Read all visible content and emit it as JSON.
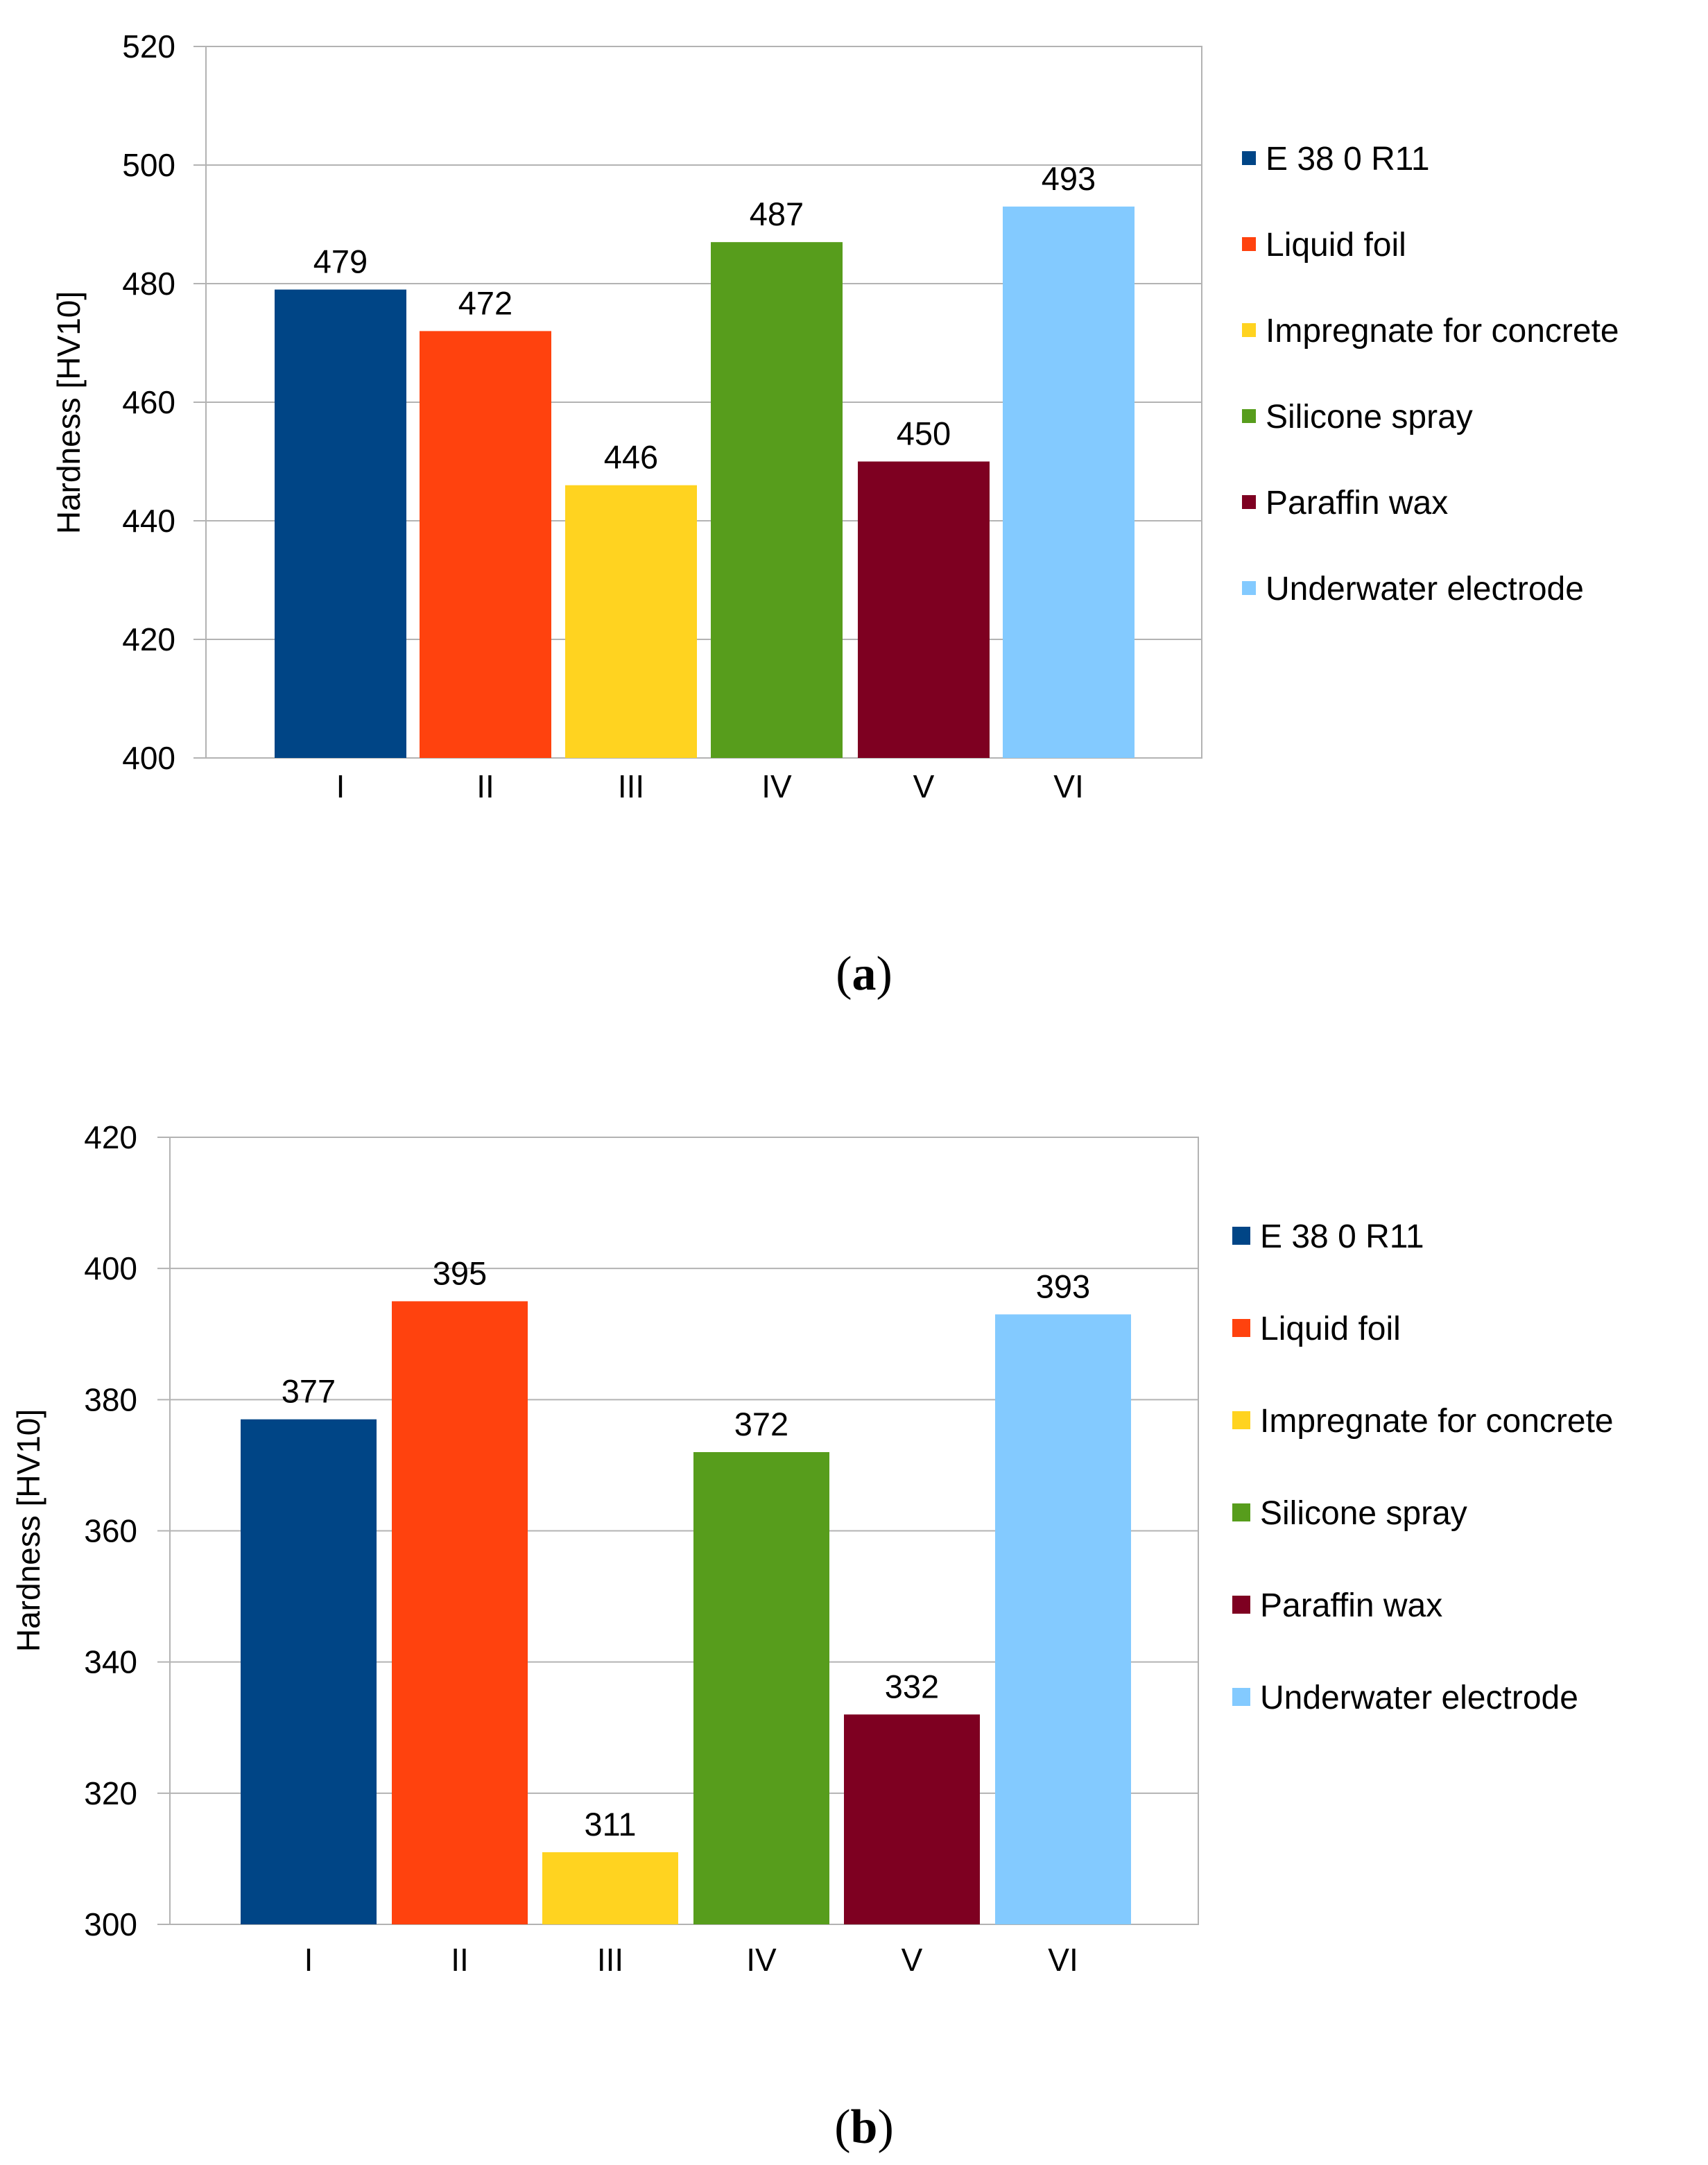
{
  "chart_data": [
    {
      "type": "bar",
      "panel_label": "a",
      "ylabel": "Hardness [HV10]",
      "xlabel": "",
      "ylim": [
        400,
        520
      ],
      "y_ticks": [
        400,
        420,
        440,
        460,
        480,
        500,
        520
      ],
      "grid": true,
      "legend_position": "right",
      "categories": [
        "I",
        "II",
        "III",
        "IV",
        "V",
        "VI"
      ],
      "values": [
        479,
        472,
        446,
        487,
        450,
        493
      ],
      "series": [
        {
          "name": "E 38 0 R11",
          "color": "#004586"
        },
        {
          "name": "Liquid foil",
          "color": "#ff420e"
        },
        {
          "name": "Impregnate for concrete",
          "color": "#ffd320"
        },
        {
          "name": "Silicone spray",
          "color": "#579d1c"
        },
        {
          "name": "Paraffin wax",
          "color": "#7e0021"
        },
        {
          "name": "Underwater electrode",
          "color": "#83caff"
        }
      ]
    },
    {
      "type": "bar",
      "panel_label": "b",
      "ylabel": "Hardness [HV10]",
      "xlabel": "",
      "ylim": [
        300,
        420
      ],
      "y_ticks": [
        300,
        320,
        340,
        360,
        380,
        400,
        420
      ],
      "grid": true,
      "legend_position": "right",
      "categories": [
        "I",
        "II",
        "III",
        "IV",
        "V",
        "VI"
      ],
      "values": [
        377,
        395,
        311,
        372,
        332,
        393
      ],
      "series": [
        {
          "name": "E 38 0 R11",
          "color": "#004586"
        },
        {
          "name": "Liquid foil",
          "color": "#ff420e"
        },
        {
          "name": "Impregnate for concrete",
          "color": "#ffd320"
        },
        {
          "name": "Silicone spray",
          "color": "#579d1c"
        },
        {
          "name": "Paraffin wax",
          "color": "#7e0021"
        },
        {
          "name": "Underwater electrode",
          "color": "#83caff"
        }
      ]
    }
  ],
  "style": {
    "grid_color": "#b3b3b3",
    "axis_color": "#b3b3b3"
  }
}
